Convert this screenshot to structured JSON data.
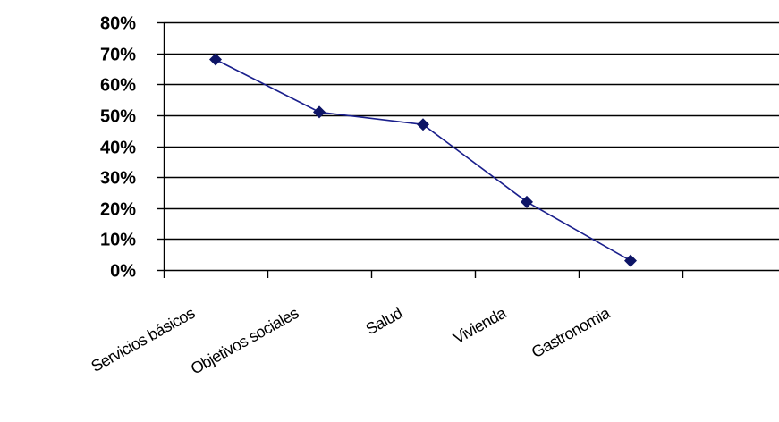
{
  "chart_data": {
    "type": "line",
    "categories": [
      "Servicios básicos",
      "Objetivos sociales",
      "Salud",
      "Vivienda",
      "Gastronomia"
    ],
    "series": [
      {
        "values": [
          68,
          51,
          47,
          22,
          3
        ]
      }
    ],
    "yticks": [
      "0%",
      "10%",
      "20%",
      "30%",
      "40%",
      "50%",
      "60%",
      "70%",
      "80%"
    ],
    "ylim": [
      0,
      80
    ],
    "grid": true,
    "legend": "none",
    "colors": {
      "series": "#1a1f8c",
      "marker": "#0d1466",
      "grid": "#000000",
      "axis": "#000000"
    }
  }
}
